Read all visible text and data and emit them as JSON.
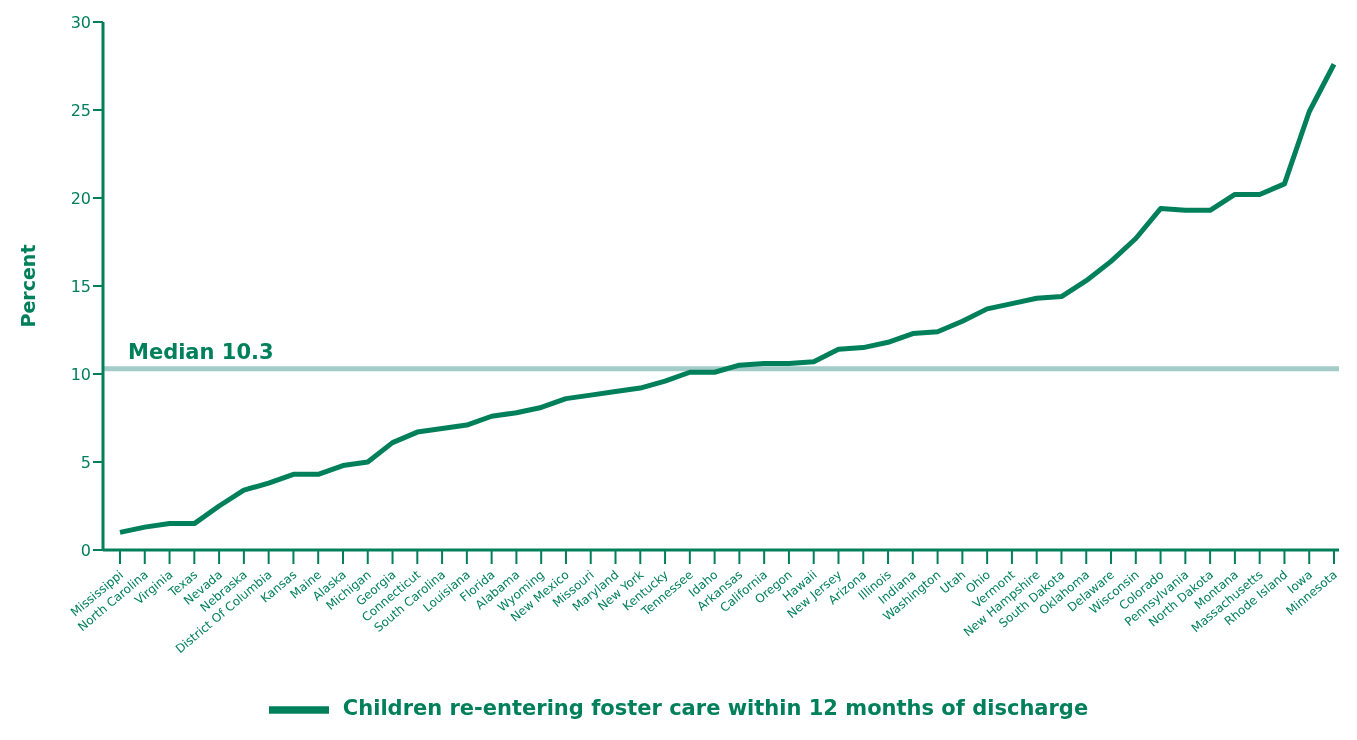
{
  "chart_data": {
    "type": "line",
    "ylabel": "Percent",
    "categories": [
      "Mississippi",
      "North Carolina",
      "Virginia",
      "Texas",
      "Nevada",
      "Nebraska",
      "District Of Columbia",
      "Kansas",
      "Maine",
      "Alaska",
      "Michigan",
      "Georgia",
      "Connecticut",
      "South Carolina",
      "Louisiana",
      "Florida",
      "Alabama",
      "Wyoming",
      "New Mexico",
      "Missouri",
      "Maryland",
      "New York",
      "Kentucky",
      "Tennessee",
      "Idaho",
      "Arkansas",
      "California",
      "Oregon",
      "Hawaii",
      "New Jersey",
      "Arizona",
      "Illinois",
      "Indiana",
      "Washington",
      "Utah",
      "Ohio",
      "Vermont",
      "New Hampshire",
      "South Dakota",
      "Oklahoma",
      "Delaware",
      "Wisconsin",
      "Colorado",
      "Pennsylvania",
      "North Dakota",
      "Montana",
      "Massachusetts",
      "Rhode Island",
      "Iowa",
      "Minnesota"
    ],
    "series": [
      {
        "name": "Children re-entering foster care within 12 months of discharge",
        "color": "#00805a",
        "values": [
          1.0,
          1.3,
          1.5,
          1.5,
          2.5,
          3.4,
          3.8,
          4.3,
          4.3,
          4.8,
          5.0,
          6.1,
          6.7,
          6.9,
          7.1,
          7.6,
          7.8,
          8.1,
          8.6,
          8.8,
          9.0,
          9.2,
          9.6,
          10.1,
          10.1,
          10.5,
          10.6,
          10.6,
          10.7,
          11.4,
          11.5,
          11.8,
          12.3,
          12.4,
          13.0,
          13.7,
          14.0,
          14.3,
          14.4,
          15.3,
          16.4,
          17.7,
          19.4,
          19.3,
          19.3,
          20.2,
          20.2,
          20.8,
          24.9,
          27.6
        ]
      }
    ],
    "ylim": [
      0,
      30
    ],
    "yticks": [
      0,
      5,
      10,
      15,
      20,
      25,
      30
    ],
    "ref_lines": [
      {
        "axis": "y",
        "value": 10.3,
        "label": "Median 10.3",
        "color": "#a3cbc8"
      }
    ],
    "grid": false,
    "legend": "bottom",
    "marker": "none",
    "line_style": "solid"
  }
}
